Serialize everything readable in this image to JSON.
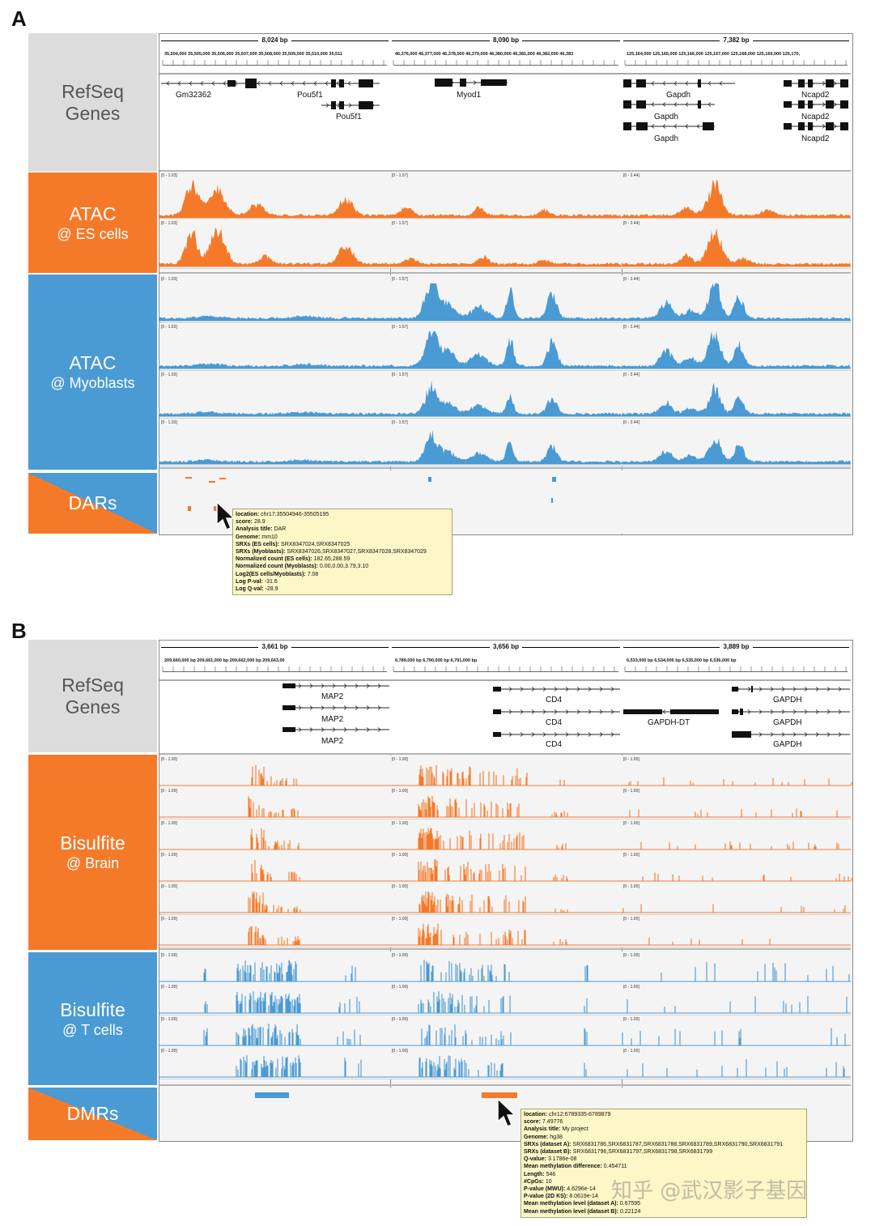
{
  "panels": {
    "A": {
      "letter": "A",
      "sidebar": {
        "refseq": {
          "line1": "RefSeq",
          "line2": "Genes"
        },
        "atac_es": {
          "line1": "ATAC",
          "line2": "@ ES cells"
        },
        "atac_myo": {
          "line1": "ATAC",
          "line2": "@ Myoblasts"
        },
        "dars": {
          "line1": "DARs"
        }
      },
      "loci": [
        {
          "span": "8,024 bp",
          "ticks": "35,504,000 35,505,000 35,506,000 35,507,000 35,508,000 35,509,000 35,510,000 35,511",
          "scale": "[0 - 1.03]",
          "genes": [
            "Gm32362",
            "Pou5f1",
            "Pou5f1"
          ]
        },
        {
          "span": "8,090 bp",
          "ticks": "46,376,000 46,377,000 46,378,000 46,379,000 46,380,000 46,381,000 46,382,000 46,383",
          "scale": "[0 - 1.57]",
          "genes": [
            "Myod1"
          ]
        },
        {
          "span": "7,382 bp",
          "ticks": "125,164,000 125,165,000 125,166,000 125,167,000 125,168,000 125,169,000 125,170,",
          "scale": "[0 - 2.44]",
          "genes": [
            "Gapdh",
            "Gapdh",
            "Gapdh",
            "Ncapd2",
            "Ncapd2",
            "Ncapd2"
          ]
        }
      ],
      "tooltip": [
        {
          "label": "location:",
          "value": "chr17:35504946-35505195"
        },
        {
          "label": "score:",
          "value": "28.9"
        },
        {
          "label": "Analysis title:",
          "value": "DAR"
        },
        {
          "label": "Genome:",
          "value": "mm10"
        },
        {
          "label": "SRXs (ES cells):",
          "value": "SRX8347024,SRX8347025"
        },
        {
          "label": "SRXs (Myoblasts):",
          "value": "SRX8347026,SRX8347027,SRX8347028,SRX8347029"
        },
        {
          "label": "Normalized count (ES cells):",
          "value": "182.65,288.59"
        },
        {
          "label": "Normalized count (Myoblasts):",
          "value": "0.00,0.00,3.79,3.10"
        },
        {
          "label": "Log2(ES cells/Myoblasts):",
          "value": "7.08"
        },
        {
          "label": "Log P-val:",
          "value": "-31.6"
        },
        {
          "label": "Log Q-val:",
          "value": "-28.9"
        }
      ]
    },
    "B": {
      "letter": "B",
      "sidebar": {
        "refseq": {
          "line1": "RefSeq",
          "line2": "Genes"
        },
        "bis_brain": {
          "line1": "Bisulfite",
          "line2": "@ Brain"
        },
        "bis_t": {
          "line1": "Bisulfite",
          "line2": "@ T cells"
        },
        "dmrs": {
          "line1": "DMRs"
        }
      },
      "loci": [
        {
          "span": "3,661 bp",
          "ticks": "209,660,000 bp        209,661,000 bp        209,662,000 bp        209,663,00",
          "scale": "[0 - 1.00]",
          "genes": [
            "MAP2",
            "MAP2",
            "MAP2"
          ]
        },
        {
          "span": "3,656 bp",
          "ticks": "6,789,000 bp        6,790,000 bp        6,791,000 bp",
          "scale": "[0 - 1.00]",
          "genes": [
            "CD4",
            "CD4",
            "CD4"
          ]
        },
        {
          "span": "3,889 bp",
          "ticks": "6,533,000 bp      6,534,000 bp      6,535,000 bp      6,536,000 bp",
          "scale": "[0 - 1.00]",
          "genes": [
            "GAPDH-DT",
            "GAPDH",
            "GAPDH",
            "GAPDH"
          ]
        }
      ],
      "tooltip": [
        {
          "label": "location:",
          "value": "chr12:6789335-6789879"
        },
        {
          "label": "score:",
          "value": "7.49776"
        },
        {
          "label": "Analysis title:",
          "value": "My project"
        },
        {
          "label": "Genome:",
          "value": "hg38"
        },
        {
          "label": "SRXs (dataset A):",
          "value": "SRX6831786,SRX6831787,SRX6831788,SRX6831789,SRX6831790,SRX6831791"
        },
        {
          "label": "SRXs (dataset B):",
          "value": "SRX6831796,SRX6831797,SRX6831798,SRX6831799"
        },
        {
          "label": "Q-value:",
          "value": "3.1786e-08"
        },
        {
          "label": "Mean methylation difference:",
          "value": "0.454711"
        },
        {
          "label": "Length:",
          "value": "546"
        },
        {
          "label": "#CpGs:",
          "value": "10"
        },
        {
          "label": "P-value (MWU):",
          "value": "4.6296e-14"
        },
        {
          "label": "P-value (2D KS):",
          "value": "8.0619e-14"
        },
        {
          "label": "Mean methylation level (dataset A):",
          "value": "0.67595"
        },
        {
          "label": "Mean methylation level (dataset B):",
          "value": "0.22124"
        }
      ]
    }
  },
  "watermark": "知乎 @武汉影子基因",
  "colors": {
    "orange": "#f47a2a",
    "blue": "#4a9ad4",
    "gray": "#dcdcdc"
  },
  "icons": [
    "arrow-cursor-icon"
  ]
}
